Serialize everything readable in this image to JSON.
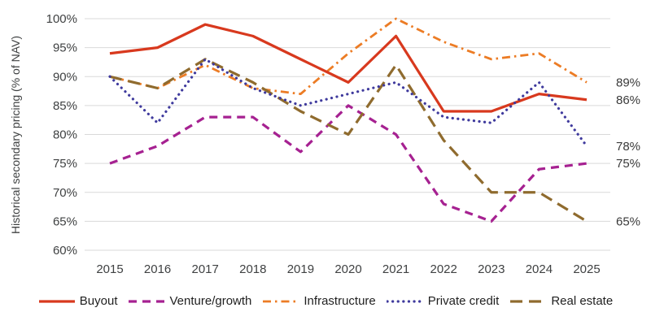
{
  "chart_data": {
    "type": "line",
    "title": "",
    "ylabel": "Historical secondary pricing (% of NAV)",
    "xlabel": "",
    "categories": [
      "2015",
      "2016",
      "2017",
      "2018",
      "2019",
      "2020",
      "2021",
      "2022",
      "2023",
      "2024",
      "2025"
    ],
    "y_ticks": [
      "100%",
      "95%",
      "90%",
      "85%",
      "80%",
      "75%",
      "70%",
      "65%",
      "60%"
    ],
    "y_tick_values": [
      100,
      95,
      90,
      85,
      80,
      75,
      70,
      65,
      60
    ],
    "ylim": [
      60,
      100
    ],
    "grid": "horizontal-only",
    "grid_color": "#d9d9d9",
    "legend_position": "bottom",
    "series": [
      {
        "name": "Buyout",
        "color": "#d8391e",
        "line_style": "solid",
        "values": [
          94,
          95,
          99,
          97,
          93,
          89,
          97,
          84,
          84,
          87,
          86
        ],
        "end_label": "86%"
      },
      {
        "name": "Venture/growth",
        "color": "#a62191",
        "line_style": "dashed",
        "values": [
          75,
          78,
          83,
          83,
          77,
          85,
          80,
          68,
          65,
          74,
          75
        ],
        "end_label": "75%"
      },
      {
        "name": "Infrastructure",
        "color": "#ec7c25",
        "line_style": "dash-dot",
        "values": [
          90,
          88,
          92,
          88,
          87,
          94,
          100,
          96,
          93,
          94,
          89
        ],
        "end_label": "89%"
      },
      {
        "name": "Private credit",
        "color": "#3f3a9d",
        "line_style": "dotted",
        "values": [
          90,
          82,
          93,
          88,
          85,
          87,
          89,
          83,
          82,
          89,
          78
        ],
        "end_label": "78%"
      },
      {
        "name": "Real estate",
        "color": "#8f6b2e",
        "line_style": "long-dash",
        "values": [
          90,
          88,
          93,
          89,
          84,
          80,
          92,
          79,
          70,
          70,
          65
        ],
        "end_label": "65%"
      }
    ]
  }
}
